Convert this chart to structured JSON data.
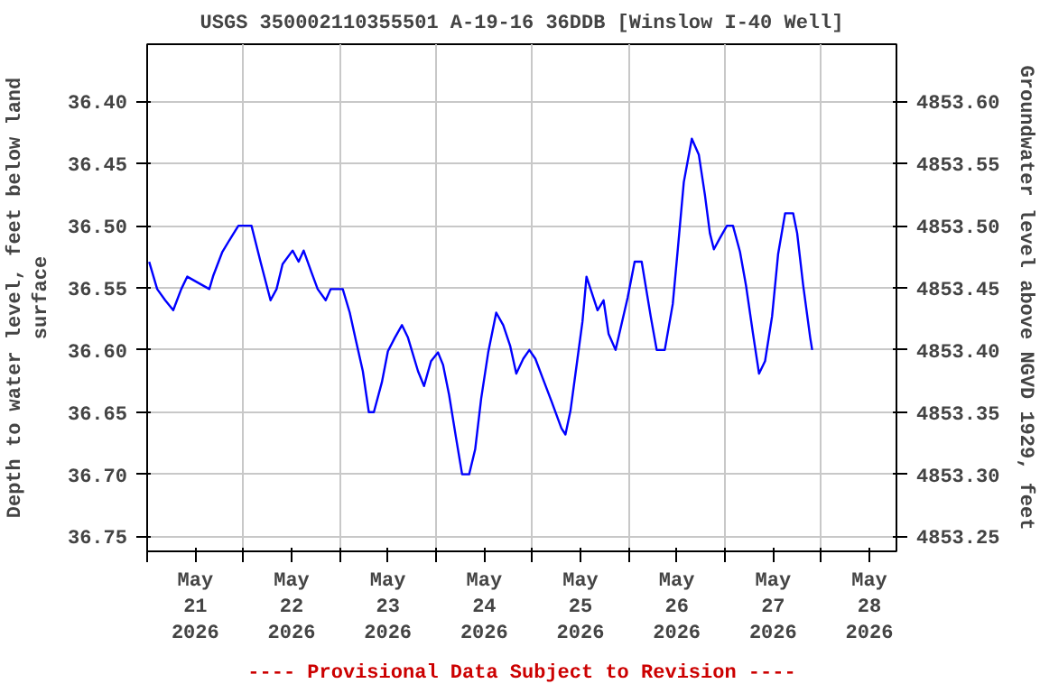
{
  "chart_data": {
    "type": "line",
    "title": "USGS 350002110355501 A-19-16 36DDB [Winslow I-40 Well]",
    "ylabel": "Depth to water level, feet below land surface",
    "y2label": "Groundwater level above NGVD 1929, feet",
    "annotations": [
      "---- Provisional Data Subject to Revision ----"
    ],
    "xlim": [
      "2026-05-21T00:00",
      "2026-05-28T18:45"
    ],
    "xticks": [
      {
        "value": "2026-05-21T00:00",
        "label": null
      },
      {
        "value": "2026-05-21T12:00",
        "label": "May\n21\n2026"
      },
      {
        "value": "2026-05-22T00:00",
        "label": null
      },
      {
        "value": "2026-05-22T12:00",
        "label": "May\n22\n2026"
      },
      {
        "value": "2026-05-23T00:00",
        "label": null
      },
      {
        "value": "2026-05-23T12:00",
        "label": "May\n23\n2026"
      },
      {
        "value": "2026-05-24T00:00",
        "label": null
      },
      {
        "value": "2026-05-24T12:00",
        "label": "May\n24\n2026"
      },
      {
        "value": "2026-05-25T00:00",
        "label": null
      },
      {
        "value": "2026-05-25T12:00",
        "label": "May\n25\n2026"
      },
      {
        "value": "2026-05-26T00:00",
        "label": null
      },
      {
        "value": "2026-05-26T12:00",
        "label": "May\n26\n2026"
      },
      {
        "value": "2026-05-27T00:00",
        "label": null
      },
      {
        "value": "2026-05-27T12:00",
        "label": "May\n27\n2026"
      },
      {
        "value": "2026-05-28T00:00",
        "label": null
      },
      {
        "value": "2026-05-28T12:00",
        "label": "May\n28\n2026"
      }
    ],
    "ylim": [
      36.762,
      36.354
    ],
    "yticks": [
      {
        "value": 36.4,
        "label": "36.40"
      },
      {
        "value": 36.45,
        "label": "36.45"
      },
      {
        "value": 36.5,
        "label": "36.50"
      },
      {
        "value": 36.55,
        "label": "36.55"
      },
      {
        "value": 36.6,
        "label": "36.60"
      },
      {
        "value": 36.65,
        "label": "36.65"
      },
      {
        "value": 36.7,
        "label": "36.70"
      },
      {
        "value": 36.75,
        "label": "36.75"
      }
    ],
    "y2lim": [
      4853.238,
      4853.646
    ],
    "y2ticks": [
      {
        "value": 4853.25,
        "label": "4853.25"
      },
      {
        "value": 4853.3,
        "label": "4853.30"
      },
      {
        "value": 4853.35,
        "label": "4853.35"
      },
      {
        "value": 4853.4,
        "label": "4853.40"
      },
      {
        "value": 4853.45,
        "label": "4853.45"
      },
      {
        "value": 4853.5,
        "label": "4853.50"
      },
      {
        "value": 4853.55,
        "label": "4853.55"
      },
      {
        "value": 4853.6,
        "label": "4853.60"
      }
    ],
    "grid": true,
    "marker": "none",
    "line_style": "solid",
    "series": [
      {
        "color": "#0000ff",
        "x": [
          "2026-05-21T00:30",
          "2026-05-21T02:30",
          "2026-05-21T04:30",
          "2026-05-21T06:30",
          "2026-05-21T08:30",
          "2026-05-21T10:00",
          "2026-05-21T15:30",
          "2026-05-21T16:30",
          "2026-05-21T18:45",
          "2026-05-21T21:00",
          "2026-05-21T22:45",
          "2026-05-22T02:00",
          "2026-05-22T04:15",
          "2026-05-22T06:45",
          "2026-05-22T08:15",
          "2026-05-22T09:45",
          "2026-05-22T12:15",
          "2026-05-22T13:45",
          "2026-05-22T15:00",
          "2026-05-22T17:00",
          "2026-05-22T18:30",
          "2026-05-22T20:30",
          "2026-05-22T21:45",
          "2026-05-23T00:45",
          "2026-05-23T02:30",
          "2026-05-23T04:00",
          "2026-05-23T05:45",
          "2026-05-23T07:15",
          "2026-05-23T08:30",
          "2026-05-23T10:30",
          "2026-05-23T12:00",
          "2026-05-23T13:45",
          "2026-05-23T15:30",
          "2026-05-23T17:00",
          "2026-05-23T19:30",
          "2026-05-23T21:00",
          "2026-05-23T22:45",
          "2026-05-24T00:30",
          "2026-05-24T01:45",
          "2026-05-24T03:15",
          "2026-05-24T05:00",
          "2026-05-24T06:30",
          "2026-05-24T08:15",
          "2026-05-24T09:45",
          "2026-05-24T11:15",
          "2026-05-24T13:00",
          "2026-05-24T15:00",
          "2026-05-24T16:45",
          "2026-05-24T18:30",
          "2026-05-24T20:00",
          "2026-05-24T21:45",
          "2026-05-24T23:15",
          "2026-05-25T00:45",
          "2026-05-25T02:30",
          "2026-05-25T04:45",
          "2026-05-25T07:15",
          "2026-05-25T08:15",
          "2026-05-25T09:30",
          "2026-05-25T11:15",
          "2026-05-25T12:30",
          "2026-05-25T13:30",
          "2026-05-25T16:15",
          "2026-05-25T17:45",
          "2026-05-25T19:00",
          "2026-05-25T20:45",
          "2026-05-25T23:45",
          "2026-05-26T01:30",
          "2026-05-26T03:15",
          "2026-05-26T05:30",
          "2026-05-26T07:00",
          "2026-05-26T09:00",
          "2026-05-26T11:00",
          "2026-05-26T12:15",
          "2026-05-26T13:45",
          "2026-05-26T15:45",
          "2026-05-26T17:30",
          "2026-05-26T19:00",
          "2026-05-26T20:15",
          "2026-05-26T21:15",
          "2026-05-26T22:45",
          "2026-05-27T00:30",
          "2026-05-27T02:00",
          "2026-05-27T03:45",
          "2026-05-27T05:15",
          "2026-05-27T07:00",
          "2026-05-27T08:30",
          "2026-05-27T10:00",
          "2026-05-27T11:45",
          "2026-05-27T13:15",
          "2026-05-27T15:00",
          "2026-05-27T17:00",
          "2026-05-27T18:00",
          "2026-05-27T19:30",
          "2026-05-27T21:15",
          "2026-05-27T21:45"
        ],
        "values": [
          36.529,
          36.551,
          36.56,
          36.568,
          36.551,
          36.541,
          36.551,
          36.54,
          36.521,
          36.509,
          36.5,
          36.5,
          36.529,
          36.56,
          36.551,
          36.531,
          36.52,
          36.529,
          36.52,
          36.538,
          36.551,
          36.56,
          36.551,
          36.551,
          36.57,
          36.592,
          36.617,
          36.65,
          36.65,
          36.626,
          36.601,
          36.59,
          36.58,
          36.59,
          36.617,
          36.629,
          36.609,
          36.602,
          36.612,
          36.636,
          36.671,
          36.7,
          36.7,
          36.68,
          36.639,
          36.602,
          36.57,
          36.58,
          36.597,
          36.619,
          36.607,
          36.6,
          36.607,
          36.622,
          36.641,
          36.663,
          36.668,
          36.649,
          36.607,
          36.577,
          36.541,
          36.568,
          36.56,
          36.587,
          36.6,
          36.558,
          36.529,
          36.529,
          36.573,
          36.6,
          36.6,
          36.563,
          36.519,
          36.465,
          36.43,
          36.443,
          36.475,
          36.506,
          36.519,
          36.51,
          36.5,
          36.5,
          36.521,
          36.548,
          36.587,
          36.619,
          36.609,
          36.573,
          36.523,
          36.49,
          36.49,
          36.506,
          36.548,
          36.59,
          36.6
        ]
      }
    ]
  }
}
